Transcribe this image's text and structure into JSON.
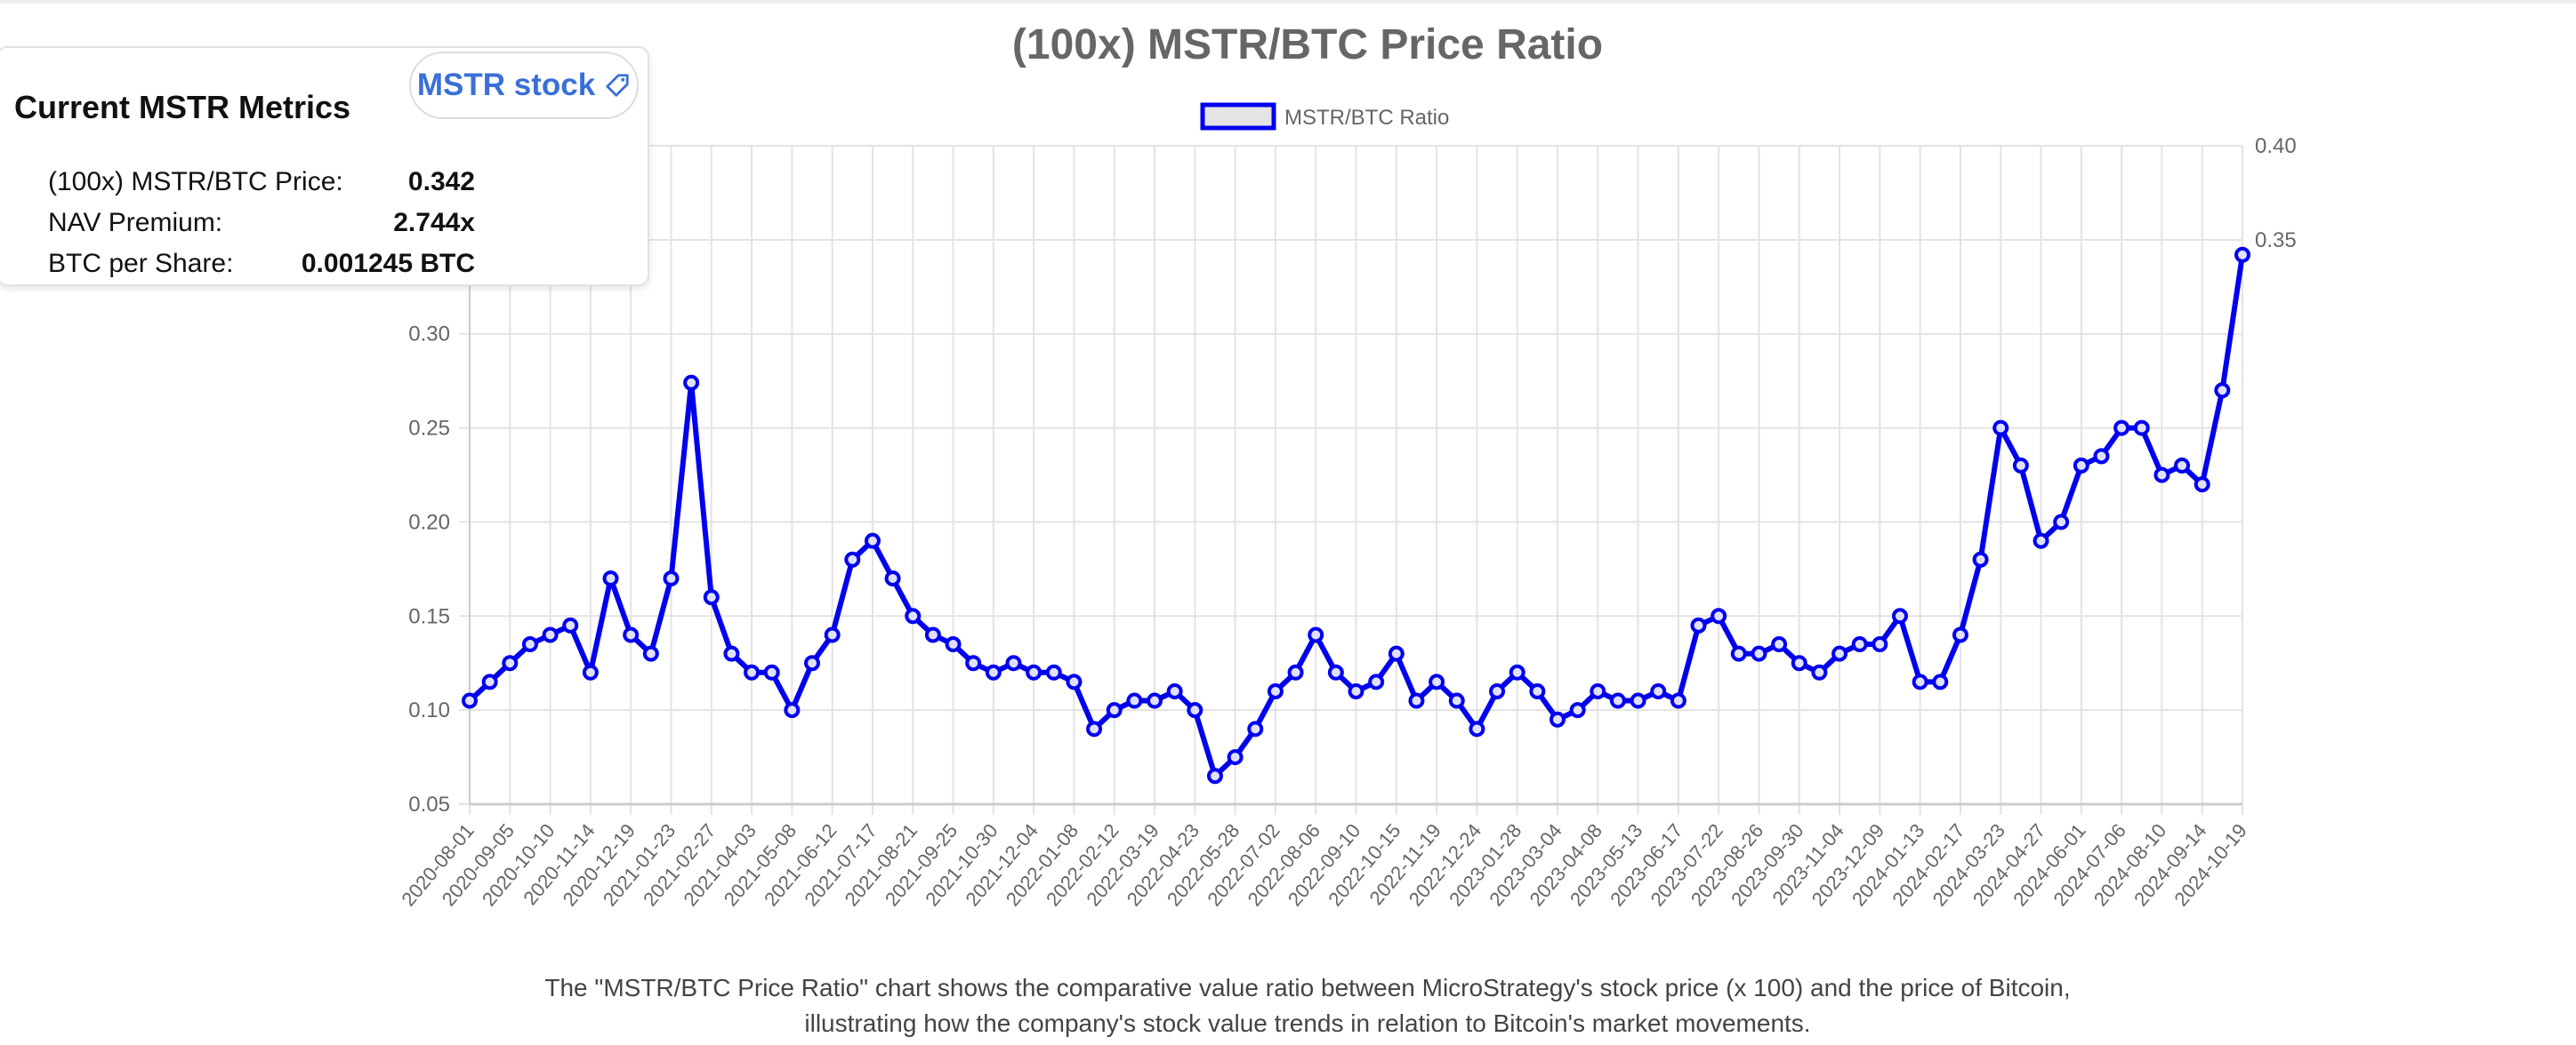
{
  "panel": {
    "title": "Current MSTR Metrics",
    "button_label": "MSTR stock",
    "button_icon": "tag-icon",
    "rows": [
      {
        "label": "(100x) MSTR/BTC Price:",
        "value": "0.342"
      },
      {
        "label": "NAV Premium:",
        "value": "2.744x"
      },
      {
        "label": "BTC per Share:",
        "value": "0.001245 BTC"
      }
    ]
  },
  "caption": "The \"MSTR/BTC Price Ratio\" chart shows the comparative value ratio between MicroStrategy's stock price (x 100) and the price of Bitcoin, illustrating how the company's stock value trends in relation to Bitcoin's market movements.",
  "chart_data": {
    "type": "line",
    "title": "(100x) MSTR/BTC Price Ratio",
    "legend": {
      "label": "MSTR/BTC Ratio",
      "placement": "top-center"
    },
    "line_color": "#0000ee",
    "grid": true,
    "xlabel": "",
    "ylabel": "",
    "ylim": [
      0.05,
      0.4
    ],
    "yticks": [
      "0.05",
      "0.10",
      "0.15",
      "0.20",
      "0.25",
      "0.30",
      "0.35",
      "0.40"
    ],
    "xticks": [
      "2020-08-01",
      "2020-09-05",
      "2020-10-10",
      "2020-11-14",
      "2020-12-19",
      "2021-01-23",
      "2021-02-27",
      "2021-04-03",
      "2021-05-08",
      "2021-06-12",
      "2021-07-17",
      "2021-08-21",
      "2021-09-25",
      "2021-10-30",
      "2021-12-04",
      "2022-01-08",
      "2022-02-12",
      "2022-03-19",
      "2022-04-23",
      "2022-05-28",
      "2022-07-02",
      "2022-08-06",
      "2022-09-10",
      "2022-10-15",
      "2022-11-19",
      "2022-12-24",
      "2023-01-28",
      "2023-03-04",
      "2023-04-08",
      "2023-05-13",
      "2023-06-17",
      "2023-07-22",
      "2023-08-26",
      "2023-09-30",
      "2023-11-04",
      "2023-12-09",
      "2024-01-13",
      "2024-02-17",
      "2024-03-23",
      "2024-04-27",
      "2024-06-01",
      "2024-07-06",
      "2024-08-10",
      "2024-09-14",
      "2024-10-19"
    ],
    "x_start": "2020-08-01",
    "x_step_days": 17.5,
    "values": [
      0.105,
      0.115,
      0.125,
      0.135,
      0.14,
      0.145,
      0.12,
      0.17,
      0.14,
      0.13,
      0.17,
      0.274,
      0.16,
      0.13,
      0.12,
      0.12,
      0.1,
      0.125,
      0.14,
      0.18,
      0.19,
      0.17,
      0.15,
      0.14,
      0.135,
      0.125,
      0.12,
      0.125,
      0.12,
      0.12,
      0.115,
      0.09,
      0.1,
      0.105,
      0.105,
      0.11,
      0.1,
      0.065,
      0.075,
      0.09,
      0.11,
      0.12,
      0.14,
      0.12,
      0.11,
      0.115,
      0.13,
      0.105,
      0.115,
      0.105,
      0.09,
      0.11,
      0.12,
      0.11,
      0.095,
      0.1,
      0.11,
      0.105,
      0.105,
      0.11,
      0.105,
      0.145,
      0.15,
      0.13,
      0.13,
      0.135,
      0.125,
      0.12,
      0.13,
      0.135,
      0.135,
      0.15,
      0.115,
      0.115,
      0.14,
      0.18,
      0.25,
      0.23,
      0.19,
      0.2,
      0.23,
      0.235,
      0.25,
      0.25,
      0.225,
      0.23,
      0.22,
      0.27,
      0.342
    ]
  }
}
